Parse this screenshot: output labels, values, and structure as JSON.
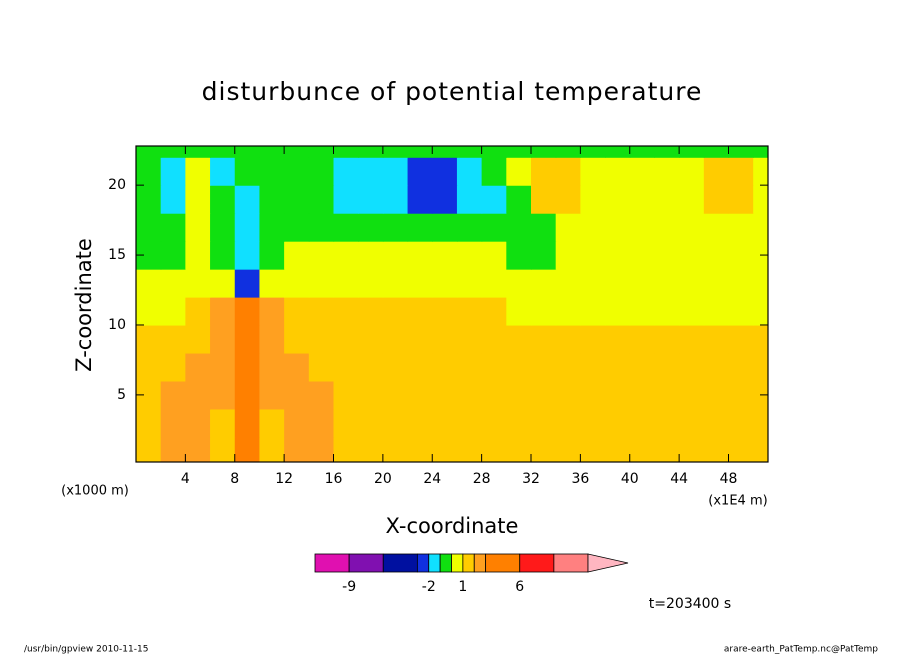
{
  "chart_data": {
    "type": "contour",
    "title": "disturbunce of potential temperature",
    "x_label": "X-coordinate",
    "y_label": "Z-coordinate",
    "x_unit": "(x1E4 m)",
    "y_unit": "(x1000 m)",
    "annotation": "t=203400 s",
    "footer_left": "/usr/bin/gpview  2010-11-15",
    "footer_right": "arare-earth_PatTemp.nc@PatTemp",
    "xlim": [
      0,
      51.2
    ],
    "ylim": [
      0.2,
      22.8
    ],
    "xticks": [
      4,
      8,
      12,
      16,
      20,
      24,
      28,
      32,
      36,
      40,
      44,
      48
    ],
    "yticks": [
      5,
      10,
      15,
      20
    ],
    "x": [
      1,
      3,
      5,
      7,
      9,
      11,
      13,
      15,
      17,
      19,
      21,
      23,
      25,
      27,
      29,
      31,
      33,
      35,
      37,
      39,
      41,
      43,
      45,
      47,
      49,
      51
    ],
    "y": [
      1,
      3,
      5,
      7,
      9,
      11,
      13,
      15,
      17,
      19,
      21,
      23
    ],
    "z": [
      [
        1.5,
        2.5,
        2.5,
        1.5,
        4,
        1.5,
        2.5,
        2.5,
        1.5,
        1.5,
        1.5,
        1.5,
        1.5,
        1.5,
        1.5,
        1.5,
        1.5,
        1.5,
        1.5,
        1.5,
        1.5,
        1.5,
        1.5,
        1.5,
        1.5,
        1.5
      ],
      [
        1.5,
        2.5,
        2.5,
        1.5,
        4,
        1.5,
        2.5,
        2.5,
        1.5,
        1.5,
        1.5,
        1.5,
        1.5,
        1.5,
        1.5,
        1.5,
        1.5,
        1.5,
        1.5,
        1.5,
        1.5,
        1.5,
        1.5,
        1.5,
        1.5,
        1.5
      ],
      [
        1.5,
        2.5,
        2.5,
        2.5,
        4,
        2.5,
        2.5,
        2.5,
        1.5,
        1.5,
        1.5,
        1.5,
        1.5,
        1.5,
        1.5,
        1.5,
        1.5,
        1.5,
        1.5,
        1.5,
        1.5,
        1.5,
        1.5,
        1.5,
        1.5,
        1.5
      ],
      [
        1.5,
        1.5,
        2.5,
        2.5,
        4,
        2.5,
        2.5,
        1.5,
        1.5,
        1.5,
        1.5,
        1.5,
        1.5,
        1.5,
        1.5,
        1.5,
        1.5,
        1.5,
        1.5,
        1.5,
        1.5,
        1.5,
        1.5,
        1.5,
        1.5,
        1.5
      ],
      [
        1.5,
        1.5,
        1.5,
        2.5,
        4,
        2.5,
        1.5,
        1.5,
        1.5,
        1.5,
        1.5,
        1.5,
        1.5,
        1.5,
        1.5,
        1.5,
        1.5,
        1.5,
        1.5,
        1.5,
        1.5,
        1.5,
        1.5,
        1.5,
        1.5,
        1.5
      ],
      [
        0.5,
        0.5,
        1.5,
        2.5,
        4,
        2.5,
        1.5,
        1.5,
        1.5,
        1.5,
        1.5,
        1.5,
        1.5,
        1.5,
        1.5,
        0.5,
        0.5,
        0.5,
        0.5,
        0.5,
        0.5,
        0.5,
        0.5,
        0.5,
        0.5,
        0.5
      ],
      [
        0.5,
        0.5,
        0.5,
        0.5,
        -3,
        0.5,
        0.5,
        0.5,
        0.5,
        0.5,
        0.5,
        0.5,
        0.5,
        0.5,
        0.5,
        0.5,
        0.5,
        0.5,
        0.5,
        0.5,
        0.5,
        0.5,
        0.5,
        0.5,
        0.5,
        0.5
      ],
      [
        -0.5,
        -0.5,
        0.5,
        -0.5,
        -1.5,
        -0.5,
        0.5,
        0.5,
        0.5,
        0.5,
        0.5,
        0.5,
        0.5,
        0.5,
        0.5,
        -0.5,
        -0.5,
        0.5,
        0.5,
        0.5,
        0.5,
        0.5,
        0.5,
        0.5,
        0.5,
        0.5
      ],
      [
        -0.5,
        -0.5,
        0.5,
        -0.5,
        -1.5,
        -0.5,
        -0.5,
        -0.5,
        -0.5,
        -0.5,
        -0.5,
        -0.5,
        -0.5,
        -0.5,
        -0.5,
        -0.5,
        -0.5,
        0.5,
        0.5,
        0.5,
        0.5,
        0.5,
        0.5,
        0.5,
        0.5,
        0.5
      ],
      [
        -0.5,
        -1.5,
        0.5,
        -0.5,
        -1.5,
        -0.5,
        -0.5,
        -0.5,
        -1.5,
        -1.5,
        -1.5,
        -2.5,
        -2.5,
        -1.5,
        -1.5,
        -0.5,
        1.5,
        1.5,
        0.5,
        0.5,
        0.5,
        0.5,
        0.5,
        1.5,
        1.5,
        0.5
      ],
      [
        -0.5,
        -1.5,
        0.5,
        -1.5,
        -0.5,
        -0.5,
        -0.5,
        -0.5,
        -1.5,
        -1.5,
        -1.5,
        -2.5,
        -2.5,
        -1.5,
        -0.5,
        0.5,
        1.5,
        1.5,
        0.5,
        0.5,
        0.5,
        0.5,
        0.5,
        1.5,
        1.5,
        0.5
      ],
      [
        -0.5,
        -0.5,
        -0.5,
        -0.5,
        -0.5,
        -0.5,
        -0.5,
        -0.5,
        -0.5,
        -0.5,
        -0.5,
        -0.5,
        -0.5,
        -0.5,
        -0.5,
        -0.5,
        -0.5,
        -0.5,
        -0.5,
        -0.5,
        -0.5,
        -0.5,
        -0.5,
        -0.5,
        -0.5,
        -0.5
      ]
    ],
    "colorbar": {
      "levels": [
        -12,
        -9,
        -6,
        -3,
        -2,
        -1,
        0,
        1,
        2,
        3,
        6,
        9,
        12
      ],
      "colors": [
        "#e010b0",
        "#8010b0",
        "#0010a0",
        "#1030e0",
        "#10e0ff",
        "#10e010",
        "#f0ff00",
        "#ffcc00",
        "#ffa020",
        "#ff8000",
        "#ff1a1a",
        "#ff8080",
        "#ffb6c1"
      ],
      "labels": [
        -9,
        -2,
        1,
        6
      ]
    }
  }
}
